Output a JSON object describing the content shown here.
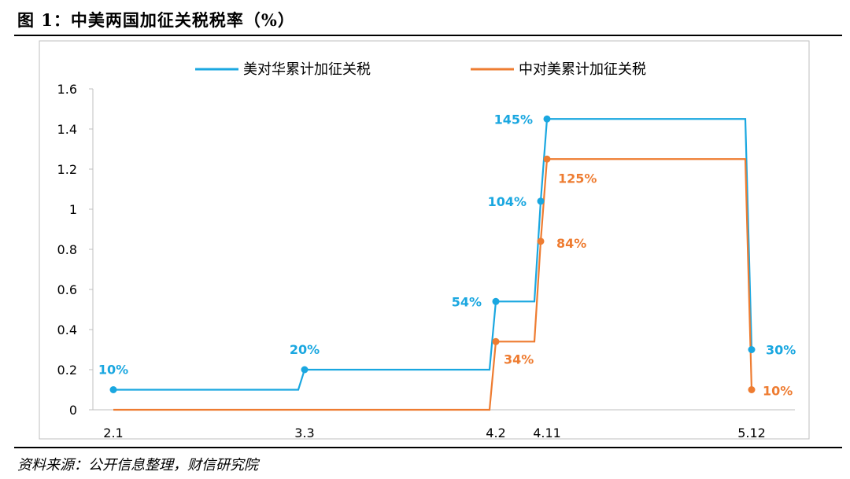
{
  "figure": {
    "title": "图 1：中美两国加征关税税率（%）",
    "source": "资料来源：公开信息整理，财信研究院"
  },
  "colors": {
    "us_series": "#1aa7e0",
    "cn_series": "#ee7c31",
    "frame": "#bfbfbf"
  },
  "chart_data": {
    "type": "line",
    "step": true,
    "legend_placement": "top",
    "grid": false,
    "ylim": [
      0,
      1.6
    ],
    "yticks": [
      "0",
      "0.2",
      "0.4",
      "0.6",
      "0.8",
      "1",
      "1.2",
      "1.4",
      "1.6"
    ],
    "xticks": [
      "2.1",
      "3.3",
      "4.2",
      "4.11",
      "5.12"
    ],
    "series": [
      {
        "name": "美对华累计加征关税",
        "color": "#1aa7e0",
        "points": [
          {
            "x": "2.1",
            "y": 0.1,
            "label": "10%"
          },
          {
            "x": "3.3",
            "y": 0.2,
            "label": "20%"
          },
          {
            "x": "4.2",
            "y": 0.54,
            "label": "54%"
          },
          {
            "x": "4.9",
            "y": 1.04,
            "label": "104%"
          },
          {
            "x": "4.11",
            "y": 1.45,
            "label": "145%"
          },
          {
            "x": "5.12",
            "y": 0.3,
            "label": "30%"
          }
        ]
      },
      {
        "name": "中对美累计加征关税",
        "color": "#ee7c31",
        "points": [
          {
            "x": "2.1",
            "y": 0
          },
          {
            "x": "4.2",
            "y": 0.34,
            "label": "34%"
          },
          {
            "x": "4.9",
            "y": 0.84,
            "label": "84%"
          },
          {
            "x": "4.11",
            "y": 1.25,
            "label": "125%"
          },
          {
            "x": "5.12",
            "y": 0.1,
            "label": "10%"
          }
        ]
      }
    ]
  }
}
